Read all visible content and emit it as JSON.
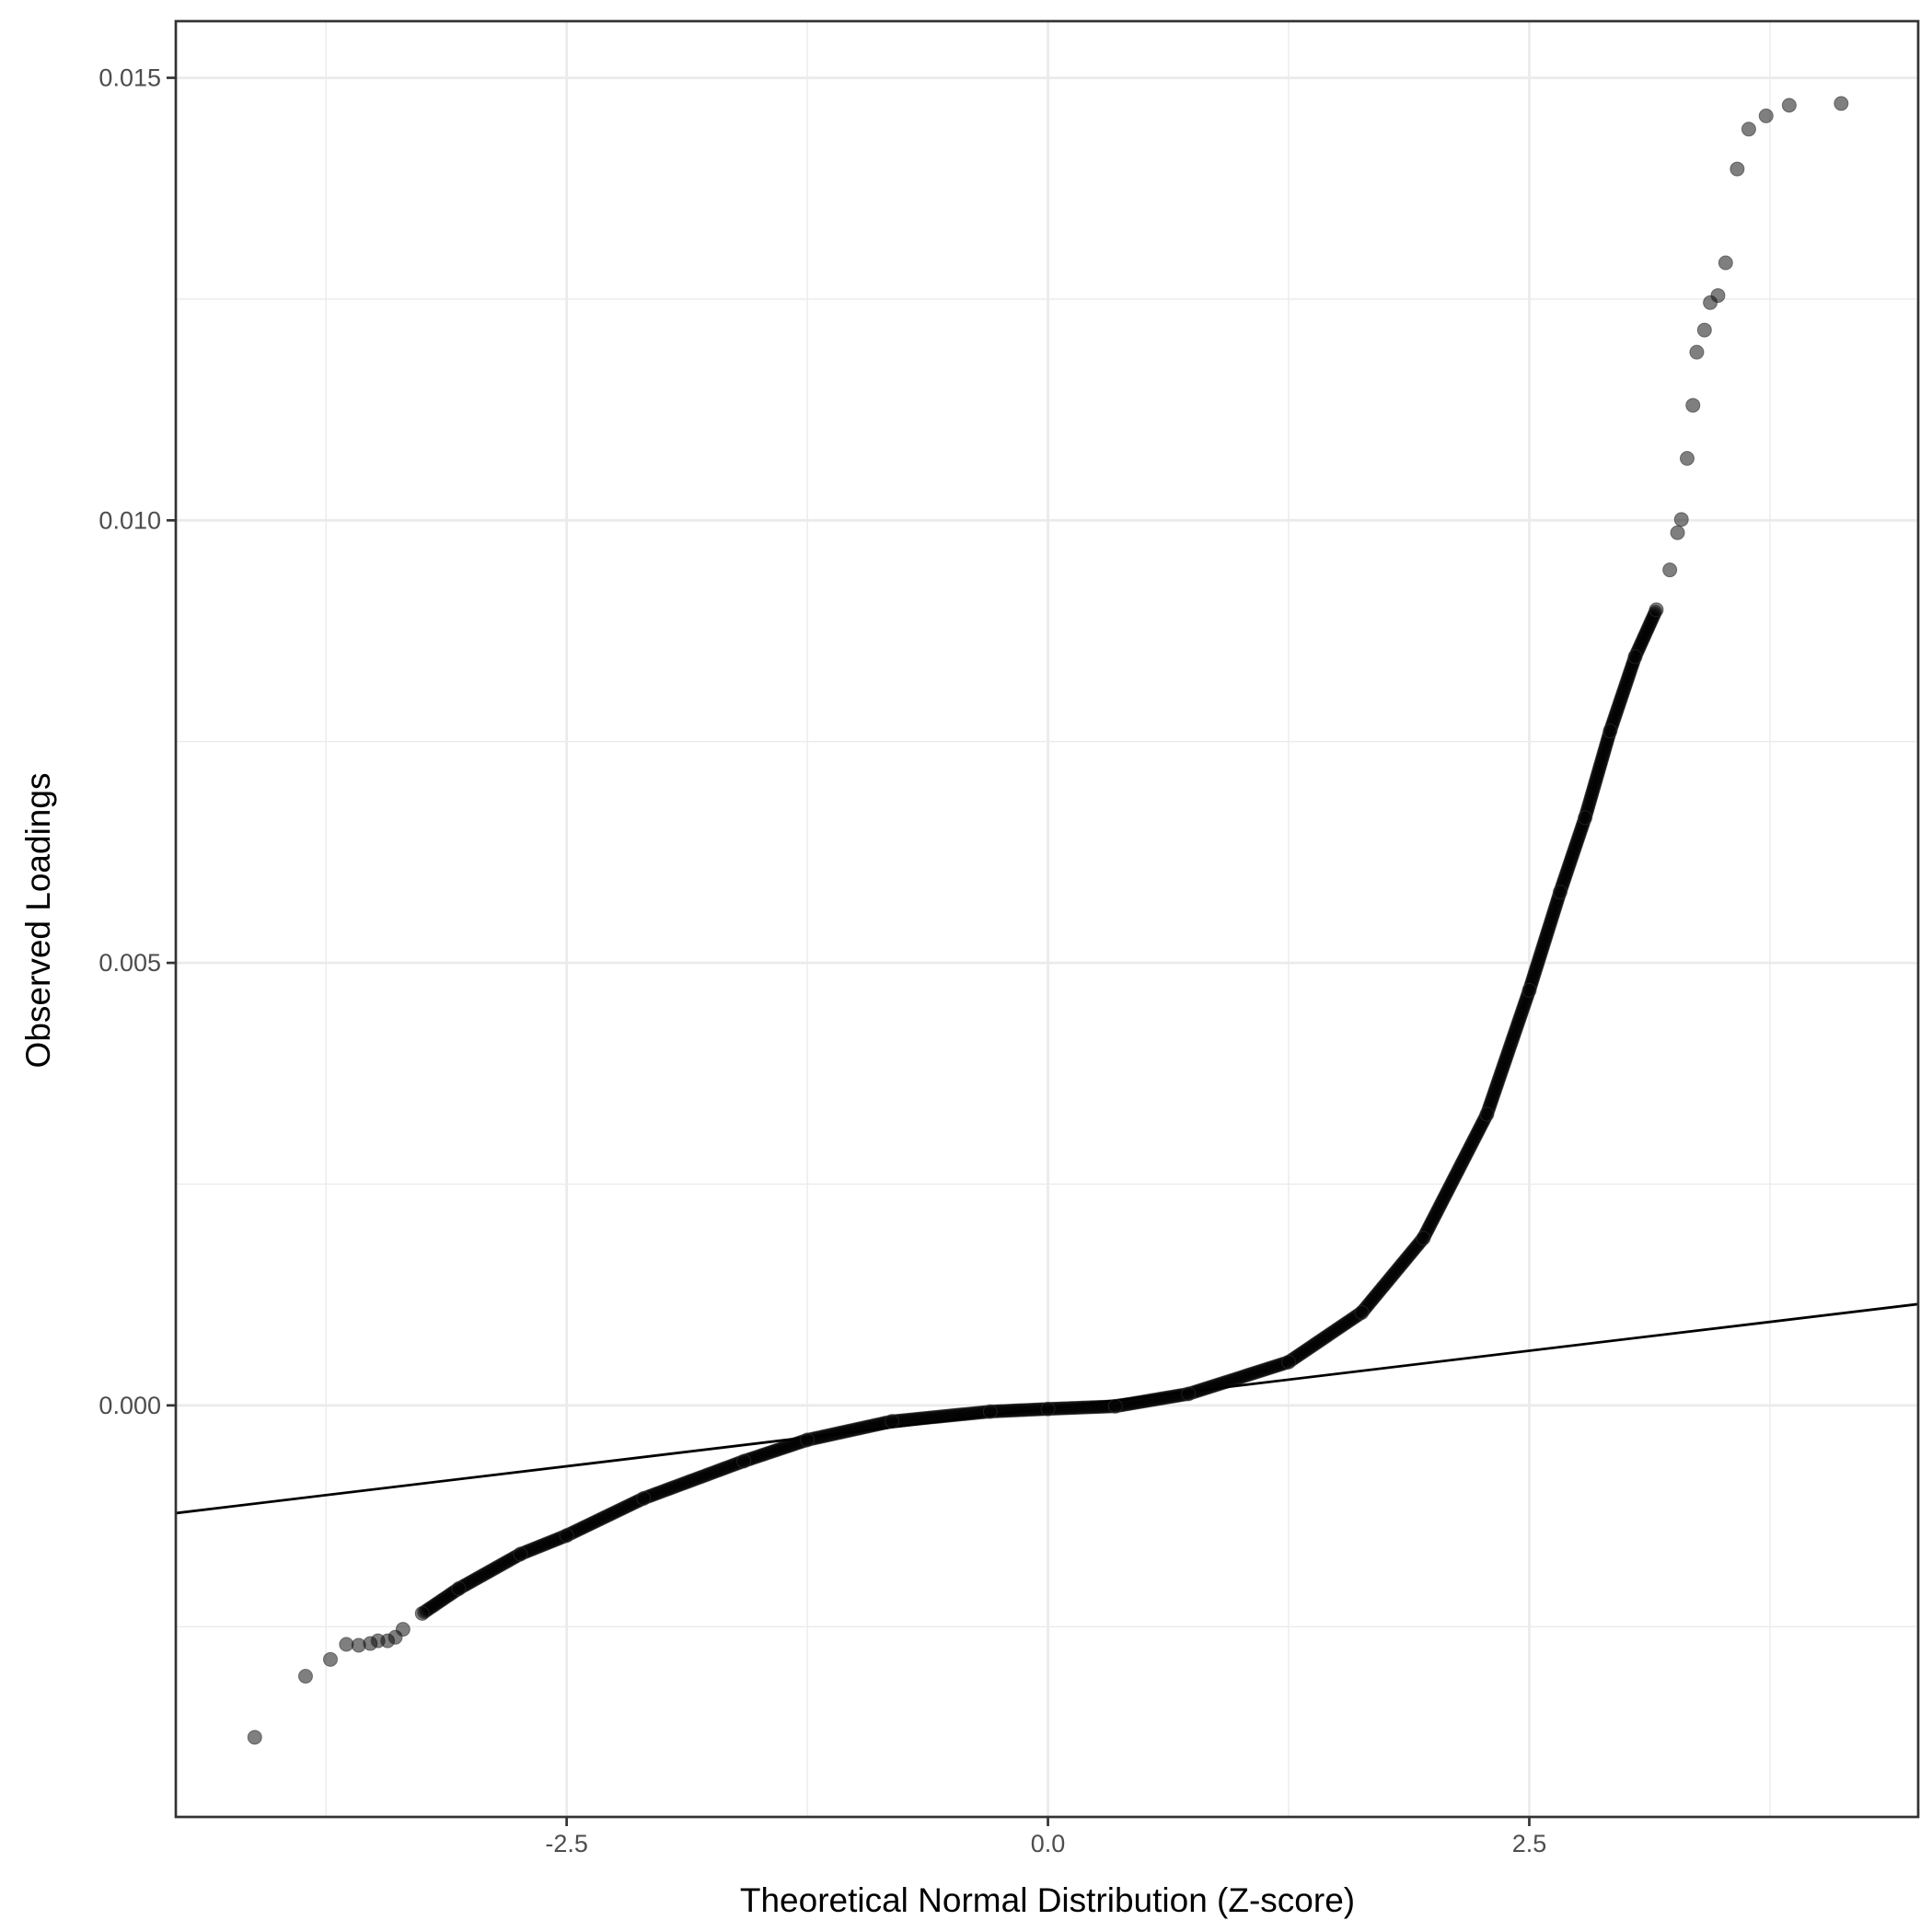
{
  "chart_data": {
    "type": "scatter",
    "title": "",
    "xlabel": "Theoretical Normal Distribution (Z-score)",
    "ylabel": "Observed Loadings",
    "xlim": [
      -4.53,
      4.52
    ],
    "ylim": [
      -0.00465,
      0.01564
    ],
    "x_ticks": [
      {
        "value": -2.5,
        "label": "-2.5"
      },
      {
        "value": 0.0,
        "label": "0.0"
      },
      {
        "value": 2.5,
        "label": "2.5"
      }
    ],
    "y_ticks": [
      {
        "value": 0.0,
        "label": "0.000"
      },
      {
        "value": 0.005,
        "label": "0.005"
      },
      {
        "value": 0.01,
        "label": "0.010"
      },
      {
        "value": 0.015,
        "label": "0.015"
      }
    ],
    "x_minor": [
      -3.75,
      -1.25,
      1.25,
      3.75
    ],
    "y_minor": [
      -0.0025,
      0.0025,
      0.0075,
      0.0125
    ],
    "grid": true,
    "point_color": "#000000",
    "point_alpha": 0.5,
    "reference_line": {
      "slope": 0.000261,
      "intercept": -3.5e-05,
      "color": "#000000"
    },
    "points": [
      [
        -4.12,
        -0.00375
      ],
      [
        -3.856,
        -0.00306
      ],
      [
        -3.727,
        -0.00287
      ],
      [
        -3.644,
        -0.0027
      ],
      [
        -3.58,
        -0.00271
      ],
      [
        -3.52,
        -0.00269
      ],
      [
        -3.48,
        -0.00266
      ],
      [
        -3.43,
        -0.00266
      ],
      [
        -3.39,
        -0.00262
      ],
      [
        -3.35,
        -0.00253
      ],
      [
        -3.25,
        -0.00235
      ],
      [
        -3.06,
        -0.00207
      ],
      [
        -2.74,
        -0.00168
      ],
      [
        -2.5,
        -0.00147
      ],
      [
        -2.1,
        -0.00105
      ],
      [
        -1.58,
        -0.00063
      ],
      [
        -1.25,
        -0.00039
      ],
      [
        -0.81,
        -0.00018
      ],
      [
        -0.3,
        -7e-05
      ],
      [
        0.0,
        -4e-05
      ],
      [
        0.35,
        -1e-05
      ],
      [
        0.73,
        0.00013
      ],
      [
        1.25,
        0.00049
      ],
      [
        1.63,
        0.00105
      ],
      [
        1.95,
        0.00189
      ],
      [
        2.28,
        0.00329
      ],
      [
        2.5,
        0.00469
      ],
      [
        2.66,
        0.0058
      ],
      [
        2.79,
        0.00664
      ],
      [
        2.92,
        0.00762
      ],
      [
        3.05,
        0.00846
      ],
      [
        3.16,
        0.00899
      ],
      [
        3.23,
        0.00944
      ],
      [
        3.27,
        0.00986
      ],
      [
        3.29,
        0.01001
      ],
      [
        3.32,
        0.0107
      ],
      [
        3.35,
        0.0113
      ],
      [
        3.37,
        0.0119
      ],
      [
        3.41,
        0.01215
      ],
      [
        3.44,
        0.01246
      ],
      [
        3.48,
        0.01254
      ],
      [
        3.52,
        0.01291
      ],
      [
        3.58,
        0.01397
      ],
      [
        3.64,
        0.01442
      ],
      [
        3.73,
        0.01457
      ],
      [
        3.85,
        0.01469
      ],
      [
        4.12,
        0.01471
      ]
    ]
  }
}
